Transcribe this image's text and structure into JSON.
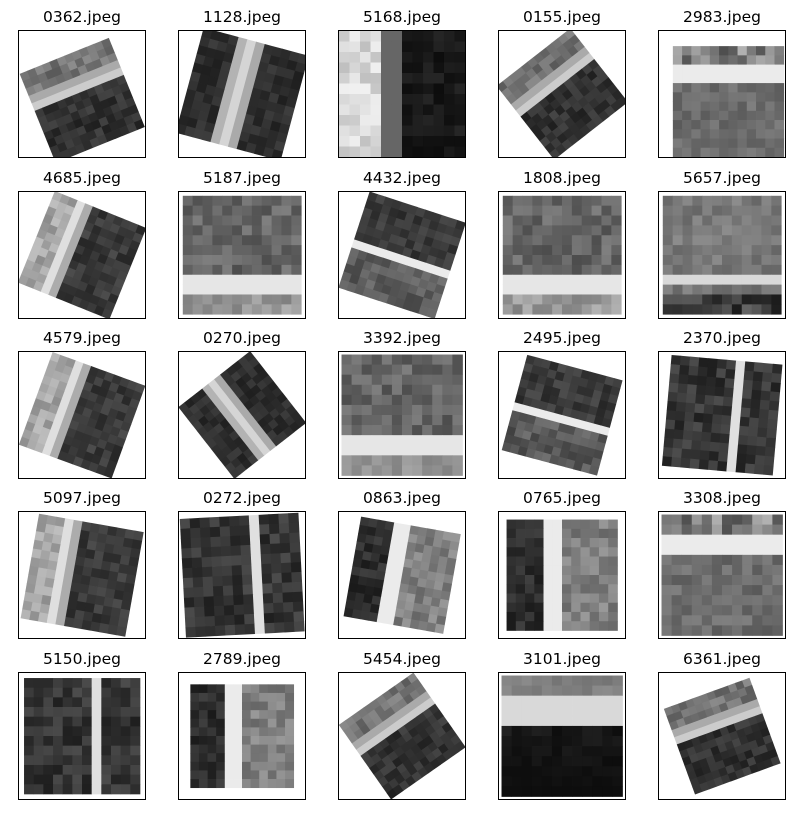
{
  "figure": {
    "tiles": [
      {
        "title": "0362.jpeg",
        "angle": -22,
        "scale": 0.76,
        "dx": 0.0,
        "dy": 0.05,
        "pattern": "band-diag"
      },
      {
        "title": "1128.jpeg",
        "angle": 15,
        "scale": 0.86,
        "dx": 0.0,
        "dy": 0.0,
        "pattern": "arm"
      },
      {
        "title": "5168.jpeg",
        "angle": 0,
        "scale": 1.0,
        "dx": 0.0,
        "dy": 0.0,
        "pattern": "vstripe-bright"
      },
      {
        "title": "0155.jpeg",
        "angle": -38,
        "scale": 0.74,
        "dx": 0.0,
        "dy": 0.0,
        "pattern": "band-diag"
      },
      {
        "title": "2983.jpeg",
        "angle": 0,
        "scale": 0.88,
        "dx": 0.05,
        "dy": 0.06,
        "pattern": "hband-top"
      },
      {
        "title": "4685.jpeg",
        "angle": 22,
        "scale": 0.78,
        "dx": 0.0,
        "dy": 0.0,
        "pattern": "vstripe-left"
      },
      {
        "title": "5187.jpeg",
        "angle": 0,
        "scale": 0.94,
        "dx": 0.0,
        "dy": 0.0,
        "pattern": "hband-bottom"
      },
      {
        "title": "4432.jpeg",
        "angle": 18,
        "scale": 0.8,
        "dx": 0.0,
        "dy": 0.0,
        "pattern": "band-diag2"
      },
      {
        "title": "1808.jpeg",
        "angle": 0,
        "scale": 0.94,
        "dx": 0.0,
        "dy": 0.0,
        "pattern": "hband-bottom"
      },
      {
        "title": "5657.jpeg",
        "angle": 0,
        "scale": 0.94,
        "dx": 0.0,
        "dy": 0.0,
        "pattern": "hband-bottom-dark"
      },
      {
        "title": "4579.jpeg",
        "angle": 20,
        "scale": 0.78,
        "dx": 0.0,
        "dy": 0.0,
        "pattern": "vstripe-left"
      },
      {
        "title": "0270.jpeg",
        "angle": -38,
        "scale": 0.72,
        "dx": 0.0,
        "dy": 0.0,
        "pattern": "arm"
      },
      {
        "title": "3392.jpeg",
        "angle": 0,
        "scale": 0.96,
        "dx": 0.0,
        "dy": 0.0,
        "pattern": "hband-bottom"
      },
      {
        "title": "2495.jpeg",
        "angle": 15,
        "scale": 0.78,
        "dx": 0.0,
        "dy": 0.0,
        "pattern": "band-diag2"
      },
      {
        "title": "2370.jpeg",
        "angle": 5,
        "scale": 0.88,
        "dx": 0.0,
        "dy": 0.0,
        "pattern": "vstripe-right"
      },
      {
        "title": "5097.jpeg",
        "angle": 10,
        "scale": 0.84,
        "dx": 0.0,
        "dy": 0.0,
        "pattern": "vstripe-left"
      },
      {
        "title": "0272.jpeg",
        "angle": -3,
        "scale": 0.94,
        "dx": 0.0,
        "dy": 0.0,
        "pattern": "vstripe-right"
      },
      {
        "title": "0863.jpeg",
        "angle": 10,
        "scale": 0.8,
        "dx": 0.0,
        "dy": 0.0,
        "pattern": "vstripe-mid"
      },
      {
        "title": "0765.jpeg",
        "angle": 0,
        "scale": 0.88,
        "dx": 0.0,
        "dy": 0.0,
        "pattern": "vstripe-mid"
      },
      {
        "title": "3308.jpeg",
        "angle": 0,
        "scale": 0.96,
        "dx": 0.0,
        "dy": 0.0,
        "pattern": "hband-top"
      },
      {
        "title": "5150.jpeg",
        "angle": 0,
        "scale": 0.92,
        "dx": 0.0,
        "dy": 0.0,
        "pattern": "vstripe-right"
      },
      {
        "title": "2789.jpeg",
        "angle": 0,
        "scale": 0.82,
        "dx": 0.0,
        "dy": 0.0,
        "pattern": "vstripe-mid"
      },
      {
        "title": "5454.jpeg",
        "angle": -35,
        "scale": 0.72,
        "dx": 0.0,
        "dy": 0.0,
        "pattern": "band-diag"
      },
      {
        "title": "3101.jpeg",
        "angle": 0,
        "scale": 0.96,
        "dx": 0.0,
        "dy": 0.0,
        "pattern": "hband-top-dark"
      },
      {
        "title": "6361.jpeg",
        "angle": -20,
        "scale": 0.72,
        "dx": 0.0,
        "dy": 0.0,
        "pattern": "band-diag"
      }
    ]
  }
}
